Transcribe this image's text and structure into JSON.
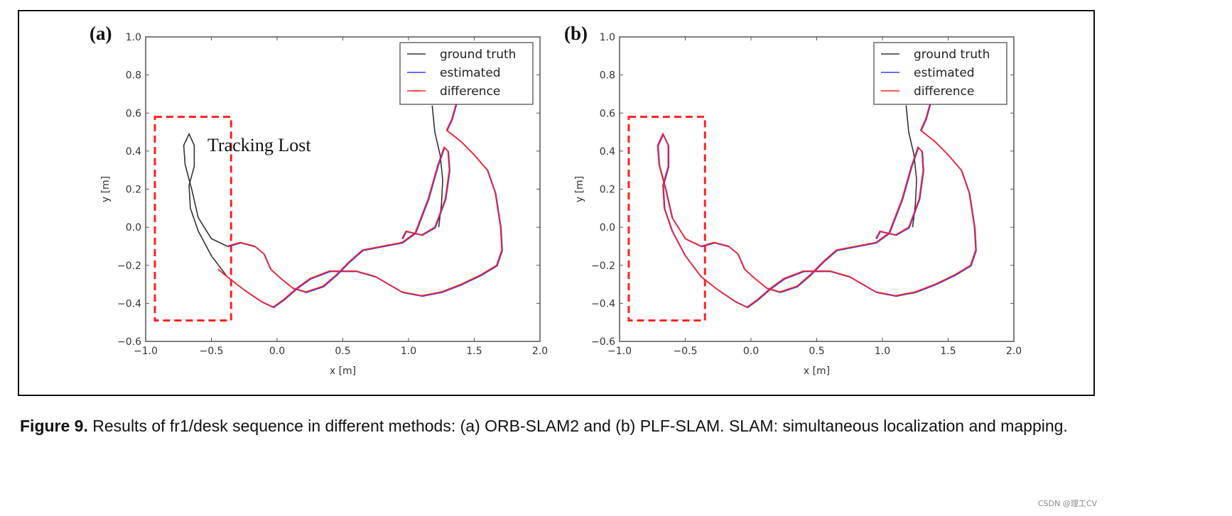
{
  "chart_data": [
    {
      "type": "line",
      "panel": "(a)",
      "xlabel": "x [m]",
      "ylabel": "y [m]",
      "xlim": [
        -1.0,
        2.0
      ],
      "ylim": [
        -0.6,
        1.0
      ],
      "xticks": [
        "−1.0",
        "−0.5",
        "0.0",
        "0.5",
        "1.0",
        "1.5",
        "2.0"
      ],
      "yticks": [
        "−0.6",
        "−0.4",
        "−0.2",
        "0.0",
        "0.2",
        "0.4",
        "0.6",
        "0.8",
        "1.0"
      ],
      "legend_position": "top-right",
      "legend": [
        "ground truth",
        "estimated",
        "difference"
      ],
      "colors": {
        "ground_truth": "#333333",
        "estimated": "#3a3aff",
        "difference": "#ff2020",
        "box": "#ff2020"
      },
      "annotation": {
        "text": "Tracking Lost",
        "x": -0.53,
        "y": 0.4
      },
      "highlight_box": {
        "x": [
          -0.93,
          -0.35
        ],
        "y": [
          -0.49,
          0.58
        ]
      },
      "series": {
        "ground_truth": [
          [
            [
              1.18,
              0.64
            ],
            [
              1.2,
              0.5
            ],
            [
              1.24,
              0.38
            ],
            [
              1.26,
              0.25
            ],
            [
              1.25,
              0.12
            ],
            [
              1.23,
              0.0
            ]
          ],
          [
            [
              1.29,
              0.51
            ],
            [
              1.4,
              0.45
            ],
            [
              1.5,
              0.38
            ],
            [
              1.6,
              0.3
            ],
            [
              1.66,
              0.18
            ],
            [
              1.7,
              0.0
            ],
            [
              1.71,
              -0.12
            ],
            [
              1.67,
              -0.2
            ],
            [
              1.55,
              -0.25
            ],
            [
              1.4,
              -0.3
            ],
            [
              1.25,
              -0.34
            ],
            [
              1.1,
              -0.36
            ],
            [
              0.95,
              -0.34
            ],
            [
              0.85,
              -0.3
            ],
            [
              0.75,
              -0.26
            ],
            [
              0.6,
              -0.23
            ],
            [
              0.4,
              -0.23
            ],
            [
              0.25,
              -0.27
            ],
            [
              0.15,
              -0.32
            ],
            [
              0.05,
              -0.38
            ],
            [
              -0.03,
              -0.42
            ],
            [
              -0.12,
              -0.39
            ],
            [
              -0.25,
              -0.33
            ],
            [
              -0.38,
              -0.26
            ],
            [
              -0.5,
              -0.15
            ],
            [
              -0.6,
              -0.02
            ],
            [
              -0.66,
              0.1
            ],
            [
              -0.67,
              0.22
            ],
            [
              -0.63,
              0.32
            ],
            [
              -0.63,
              0.43
            ],
            [
              -0.67,
              0.49
            ],
            [
              -0.71,
              0.43
            ],
            [
              -0.7,
              0.33
            ],
            [
              -0.65,
              0.2
            ],
            [
              -0.6,
              0.05
            ],
            [
              -0.5,
              -0.06
            ],
            [
              -0.38,
              -0.1
            ],
            [
              -0.28,
              -0.08
            ],
            [
              -0.17,
              -0.1
            ],
            [
              -0.1,
              -0.14
            ],
            [
              -0.05,
              -0.22
            ],
            [
              0.03,
              -0.27
            ],
            [
              0.12,
              -0.32
            ],
            [
              0.22,
              -0.34
            ],
            [
              0.35,
              -0.31
            ],
            [
              0.45,
              -0.25
            ],
            [
              0.55,
              -0.18
            ],
            [
              0.65,
              -0.12
            ],
            [
              0.8,
              -0.1
            ],
            [
              0.95,
              -0.08
            ],
            [
              1.05,
              -0.03
            ],
            [
              1.15,
              0.15
            ],
            [
              1.22,
              0.32
            ],
            [
              1.27,
              0.42
            ],
            [
              1.3,
              0.4
            ],
            [
              1.31,
              0.3
            ],
            [
              1.28,
              0.15
            ]
          ]
        ],
        "estimated": [
          [
            [
              1.37,
              0.67
            ],
            [
              1.33,
              0.57
            ],
            [
              1.29,
              0.51
            ],
            [
              1.4,
              0.45
            ],
            [
              1.5,
              0.38
            ],
            [
              1.6,
              0.3
            ],
            [
              1.66,
              0.18
            ],
            [
              1.7,
              0.0
            ],
            [
              1.71,
              -0.12
            ],
            [
              1.67,
              -0.2
            ],
            [
              1.55,
              -0.25
            ],
            [
              1.4,
              -0.3
            ],
            [
              1.25,
              -0.34
            ],
            [
              1.1,
              -0.36
            ],
            [
              0.95,
              -0.34
            ],
            [
              0.85,
              -0.3
            ],
            [
              0.75,
              -0.26
            ],
            [
              0.6,
              -0.23
            ],
            [
              0.4,
              -0.23
            ],
            [
              0.25,
              -0.27
            ],
            [
              0.15,
              -0.32
            ],
            [
              0.05,
              -0.38
            ],
            [
              -0.03,
              -0.42
            ],
            [
              -0.12,
              -0.39
            ],
            [
              -0.25,
              -0.33
            ],
            [
              -0.38,
              -0.26
            ],
            [
              -0.45,
              -0.22
            ]
          ],
          [
            [
              -0.38,
              -0.1
            ],
            [
              -0.28,
              -0.08
            ],
            [
              -0.17,
              -0.1
            ],
            [
              -0.1,
              -0.14
            ],
            [
              -0.05,
              -0.22
            ],
            [
              0.03,
              -0.27
            ],
            [
              0.12,
              -0.32
            ],
            [
              0.22,
              -0.34
            ],
            [
              0.35,
              -0.31
            ],
            [
              0.45,
              -0.25
            ],
            [
              0.55,
              -0.18
            ],
            [
              0.65,
              -0.12
            ],
            [
              0.8,
              -0.1
            ],
            [
              0.95,
              -0.08
            ],
            [
              1.05,
              -0.03
            ],
            [
              1.15,
              0.15
            ],
            [
              1.22,
              0.32
            ],
            [
              1.27,
              0.42
            ],
            [
              1.3,
              0.4
            ],
            [
              1.31,
              0.3
            ],
            [
              1.28,
              0.15
            ],
            [
              1.2,
              0.0
            ],
            [
              1.1,
              -0.04
            ],
            [
              0.98,
              -0.02
            ],
            [
              0.95,
              -0.06
            ]
          ]
        ]
      }
    },
    {
      "type": "line",
      "panel": "(b)",
      "xlabel": "x [m]",
      "ylabel": "y [m]",
      "xlim": [
        -1.0,
        2.0
      ],
      "ylim": [
        -0.6,
        1.0
      ],
      "xticks": [
        "−1.0",
        "−0.5",
        "0.0",
        "0.5",
        "1.0",
        "1.5",
        "2.0"
      ],
      "yticks": [
        "−0.6",
        "−0.4",
        "−0.2",
        "0.0",
        "0.2",
        "0.4",
        "0.6",
        "0.8",
        "1.0"
      ],
      "legend_position": "top-right",
      "legend": [
        "ground truth",
        "estimated",
        "difference"
      ],
      "colors": {
        "ground_truth": "#333333",
        "estimated": "#3a3aff",
        "difference": "#ff2020",
        "box": "#ff2020"
      },
      "highlight_box": {
        "x": [
          -0.93,
          -0.35
        ],
        "y": [
          -0.49,
          0.58
        ]
      },
      "series": {
        "ground_truth": [
          [
            [
              1.18,
              0.64
            ],
            [
              1.2,
              0.5
            ],
            [
              1.24,
              0.38
            ],
            [
              1.26,
              0.25
            ],
            [
              1.25,
              0.12
            ],
            [
              1.23,
              0.0
            ]
          ],
          [
            [
              1.29,
              0.51
            ],
            [
              1.4,
              0.45
            ],
            [
              1.5,
              0.38
            ],
            [
              1.6,
              0.3
            ],
            [
              1.66,
              0.18
            ],
            [
              1.7,
              0.0
            ],
            [
              1.71,
              -0.12
            ],
            [
              1.67,
              -0.2
            ],
            [
              1.55,
              -0.25
            ],
            [
              1.4,
              -0.3
            ],
            [
              1.25,
              -0.34
            ],
            [
              1.1,
              -0.36
            ],
            [
              0.95,
              -0.34
            ],
            [
              0.85,
              -0.3
            ],
            [
              0.75,
              -0.26
            ],
            [
              0.6,
              -0.23
            ],
            [
              0.4,
              -0.23
            ],
            [
              0.25,
              -0.27
            ],
            [
              0.15,
              -0.32
            ],
            [
              0.05,
              -0.38
            ],
            [
              -0.03,
              -0.42
            ],
            [
              -0.12,
              -0.39
            ],
            [
              -0.25,
              -0.33
            ],
            [
              -0.38,
              -0.26
            ],
            [
              -0.5,
              -0.15
            ],
            [
              -0.6,
              -0.02
            ],
            [
              -0.66,
              0.1
            ],
            [
              -0.67,
              0.22
            ],
            [
              -0.63,
              0.32
            ],
            [
              -0.63,
              0.43
            ],
            [
              -0.67,
              0.49
            ],
            [
              -0.71,
              0.43
            ],
            [
              -0.7,
              0.33
            ],
            [
              -0.65,
              0.2
            ],
            [
              -0.6,
              0.05
            ],
            [
              -0.5,
              -0.06
            ],
            [
              -0.38,
              -0.1
            ],
            [
              -0.28,
              -0.08
            ],
            [
              -0.17,
              -0.1
            ],
            [
              -0.1,
              -0.14
            ],
            [
              -0.05,
              -0.22
            ],
            [
              0.03,
              -0.27
            ],
            [
              0.12,
              -0.32
            ],
            [
              0.22,
              -0.34
            ],
            [
              0.35,
              -0.31
            ],
            [
              0.45,
              -0.25
            ],
            [
              0.55,
              -0.18
            ],
            [
              0.65,
              -0.12
            ],
            [
              0.8,
              -0.1
            ],
            [
              0.95,
              -0.08
            ],
            [
              1.05,
              -0.03
            ],
            [
              1.15,
              0.15
            ],
            [
              1.22,
              0.32
            ],
            [
              1.27,
              0.42
            ],
            [
              1.3,
              0.4
            ],
            [
              1.31,
              0.3
            ],
            [
              1.28,
              0.15
            ]
          ]
        ],
        "estimated": [
          [
            [
              1.37,
              0.67
            ],
            [
              1.33,
              0.57
            ],
            [
              1.29,
              0.51
            ],
            [
              1.4,
              0.45
            ],
            [
              1.5,
              0.38
            ],
            [
              1.6,
              0.3
            ],
            [
              1.66,
              0.18
            ],
            [
              1.7,
              0.0
            ],
            [
              1.71,
              -0.12
            ],
            [
              1.67,
              -0.2
            ],
            [
              1.55,
              -0.25
            ],
            [
              1.4,
              -0.3
            ],
            [
              1.25,
              -0.34
            ],
            [
              1.1,
              -0.36
            ],
            [
              0.95,
              -0.34
            ],
            [
              0.85,
              -0.3
            ],
            [
              0.75,
              -0.26
            ],
            [
              0.6,
              -0.23
            ],
            [
              0.4,
              -0.23
            ],
            [
              0.25,
              -0.27
            ],
            [
              0.15,
              -0.32
            ],
            [
              0.05,
              -0.38
            ],
            [
              -0.03,
              -0.42
            ],
            [
              -0.12,
              -0.39
            ],
            [
              -0.25,
              -0.33
            ],
            [
              -0.38,
              -0.26
            ],
            [
              -0.5,
              -0.15
            ],
            [
              -0.6,
              -0.02
            ],
            [
              -0.66,
              0.1
            ],
            [
              -0.67,
              0.22
            ],
            [
              -0.63,
              0.32
            ],
            [
              -0.63,
              0.43
            ],
            [
              -0.67,
              0.49
            ],
            [
              -0.71,
              0.43
            ],
            [
              -0.7,
              0.33
            ],
            [
              -0.65,
              0.2
            ],
            [
              -0.6,
              0.05
            ],
            [
              -0.5,
              -0.06
            ],
            [
              -0.38,
              -0.1
            ],
            [
              -0.28,
              -0.08
            ],
            [
              -0.17,
              -0.1
            ],
            [
              -0.1,
              -0.14
            ],
            [
              -0.05,
              -0.22
            ],
            [
              0.03,
              -0.27
            ],
            [
              0.12,
              -0.32
            ],
            [
              0.22,
              -0.34
            ],
            [
              0.35,
              -0.31
            ],
            [
              0.45,
              -0.25
            ],
            [
              0.55,
              -0.18
            ],
            [
              0.65,
              -0.12
            ],
            [
              0.8,
              -0.1
            ],
            [
              0.95,
              -0.08
            ],
            [
              1.05,
              -0.03
            ],
            [
              1.15,
              0.15
            ],
            [
              1.22,
              0.32
            ],
            [
              1.27,
              0.42
            ],
            [
              1.3,
              0.4
            ],
            [
              1.31,
              0.3
            ],
            [
              1.28,
              0.15
            ],
            [
              1.2,
              0.0
            ],
            [
              1.1,
              -0.04
            ],
            [
              0.98,
              -0.02
            ],
            [
              0.95,
              -0.06
            ]
          ]
        ]
      }
    }
  ],
  "caption": {
    "label": "Figure 9.",
    "text": " Results of fr1/desk sequence in different methods: (a) ORB-SLAM2 and (b) PLF-SLAM. SLAM: simultaneous localization and mapping."
  },
  "watermark": "CSDN @理工CV"
}
